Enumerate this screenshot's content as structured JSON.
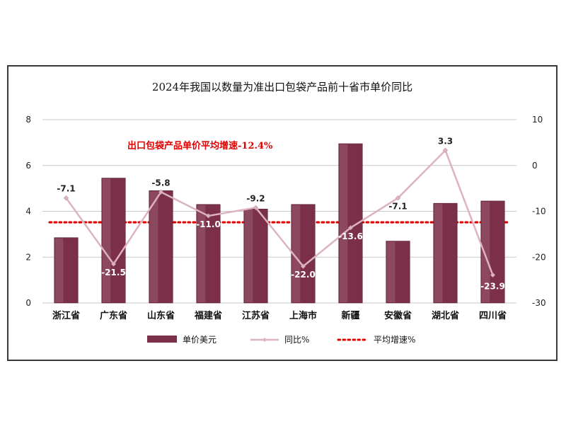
{
  "chart_data": {
    "type": "bar",
    "title": "2024年我国以数量为准出口包袋产品前十省市单价同比",
    "categories": [
      "浙江省",
      "广东省",
      "山东省",
      "福建省",
      "江苏省",
      "上海市",
      "新疆",
      "安徽省",
      "湖北省",
      "四川省"
    ],
    "series": [
      {
        "name": "单价美元",
        "type": "bar",
        "axis": "left",
        "values": [
          2.85,
          5.45,
          4.9,
          4.3,
          4.1,
          4.3,
          6.95,
          2.7,
          4.35,
          4.45
        ]
      },
      {
        "name": "同比%",
        "type": "line",
        "axis": "right",
        "values": [
          -7.1,
          -21.5,
          -5.8,
          -11.0,
          -9.2,
          -22.0,
          -13.6,
          -7.1,
          3.3,
          -23.9
        ],
        "labels": [
          "-7.1",
          "-21.5",
          "-5.8",
          "-11.0",
          "-9.2",
          "-22.0",
          "-13.6",
          "-7.1",
          "3.3",
          "-23.9"
        ]
      },
      {
        "name": "平均增速%",
        "type": "line",
        "axis": "right",
        "style": "dotted",
        "values": [
          -12.4,
          -12.4,
          -12.4,
          -12.4,
          -12.4,
          -12.4,
          -12.4,
          -12.4,
          -12.4,
          -12.4
        ]
      }
    ],
    "y_left": {
      "min": 0,
      "max": 8,
      "ticks": [
        "0",
        "2",
        "4",
        "6",
        "8"
      ]
    },
    "y_right": {
      "min": -30,
      "max": 10,
      "ticks": [
        "-30",
        "-20",
        "-10",
        "0",
        "10"
      ]
    },
    "annotation": "出口包袋产品单价平均增速-12.4%",
    "legend_position": "bottom",
    "grid": "horizontal",
    "colors": {
      "bar": "#7b2f48",
      "line": "#dcb3bf",
      "avg": "#e00000",
      "annotation": "#e00000",
      "grid": "#c8c8c8"
    }
  }
}
